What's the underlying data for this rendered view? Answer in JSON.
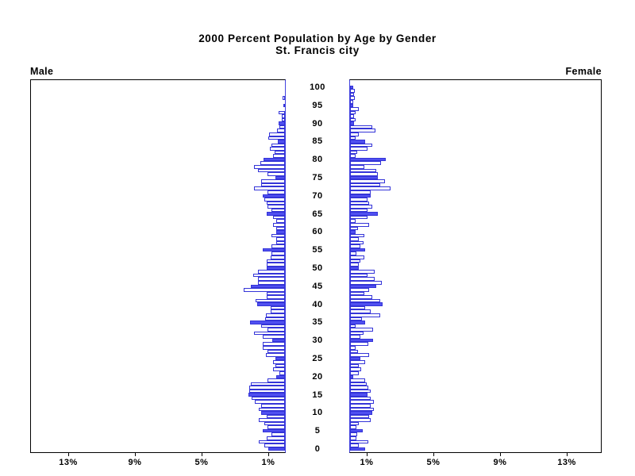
{
  "header": {
    "title": "2000 Percent Population by Age by Gender",
    "subtitle": "St. Francis city"
  },
  "panel_labels": {
    "male": "Male",
    "female": "Female"
  },
  "axis": {
    "male_tick_labels": [
      "13%",
      "9%",
      "5%",
      "1%"
    ],
    "female_tick_labels": [
      "1%",
      "5%",
      "9%",
      "13%"
    ],
    "age_tick_labels": [
      "0",
      "5",
      "10",
      "15",
      "20",
      "25",
      "30",
      "35",
      "40",
      "45",
      "50",
      "55",
      "60",
      "65",
      "70",
      "75",
      "80",
      "85",
      "90",
      "95",
      "100"
    ]
  },
  "colors": {
    "bar_outline": "#3434d8",
    "bar_fill_solid": "#5050f0",
    "bar_fill_regular": "#ffffff",
    "axis_line": "#000000",
    "center_border": "#4444e0",
    "text": "#000000",
    "background": "#ffffff"
  },
  "chart_data": {
    "type": "bar",
    "variant": "population-pyramid",
    "title": "2000 Percent Population by Age by Gender",
    "subtitle": "St. Francis city",
    "unit": "percent of population",
    "age_min": 0,
    "age_max": 100,
    "age_label_interval": 5,
    "filled_bar_interval": 5,
    "xlim": [
      0,
      15
    ],
    "x_tick_values_pct": [
      1,
      5,
      9,
      13
    ],
    "legend": "none",
    "series": [
      {
        "name": "Male",
        "side": "left",
        "values": [
          1.0,
          1.26,
          1.58,
          1.1,
          0.79,
          1.34,
          1.03,
          1.26,
          1.58,
          1.1,
          1.45,
          1.58,
          1.45,
          1.83,
          2.02,
          2.21,
          2.13,
          2.13,
          2.05,
          1.07,
          0.51,
          0.35,
          0.71,
          0.55,
          0.71,
          0.55,
          1.14,
          1.07,
          1.34,
          1.34,
          0.76,
          1.34,
          1.86,
          1.03,
          1.45,
          2.08,
          1.18,
          1.15,
          0.87,
          0.87,
          1.66,
          1.74,
          1.11,
          1.11,
          2.48,
          2.06,
          1.63,
          1.63,
          1.9,
          1.63,
          1.11,
          1.11,
          1.11,
          0.87,
          0.79,
          1.31,
          0.79,
          0.52,
          0.52,
          0.79,
          0.52,
          0.52,
          0.71,
          0.52,
          0.71,
          1.11,
          0.79,
          1.03,
          1.11,
          1.22,
          1.34,
          1.03,
          1.86,
          1.45,
          1.45,
          0.58,
          1.06,
          1.63,
          1.86,
          1.47,
          1.3,
          0.71,
          0.63,
          0.92,
          0.82,
          0.44,
          0.98,
          0.95,
          0.47,
          0.32,
          0.36,
          0.19,
          0.19,
          0.36,
          0,
          0.08,
          0,
          0.16,
          0,
          0,
          0
        ]
      },
      {
        "name": "Female",
        "side": "right",
        "values": [
          0.9,
          0.52,
          1.1,
          0.37,
          0.43,
          0.74,
          0.37,
          0.52,
          1.26,
          1.15,
          1.31,
          1.42,
          1.26,
          1.42,
          1.26,
          1.03,
          1.26,
          1.1,
          1.0,
          0.9,
          0.2,
          0.52,
          0.68,
          0.52,
          0.9,
          0.63,
          1.15,
          0.47,
          0.32,
          1.1,
          1.37,
          0.63,
          0.79,
          1.37,
          0.32,
          0.9,
          0.71,
          1.79,
          1.26,
          0.9,
          1.97,
          1.79,
          1.31,
          0.84,
          1.15,
          1.58,
          1.9,
          1.47,
          1.06,
          1.47,
          0.52,
          0.52,
          0.63,
          0.84,
          0.4,
          0.9,
          0.63,
          0.79,
          0.52,
          0.87,
          0.32,
          0.47,
          1.15,
          0.32,
          1.03,
          1.66,
          1.03,
          1.34,
          1.15,
          1.03,
          1.26,
          1.26,
          2.42,
          1.79,
          2.1,
          1.66,
          1.66,
          1.58,
          0.87,
          1.85,
          2.16,
          0.32,
          0.45,
          1.03,
          1.31,
          0.9,
          0.32,
          0.52,
          1.53,
          1.34,
          0.24,
          0.32,
          0.24,
          0.32,
          0.52,
          0.21,
          0.21,
          0.28,
          0.24,
          0.28,
          0.21
        ]
      }
    ]
  }
}
